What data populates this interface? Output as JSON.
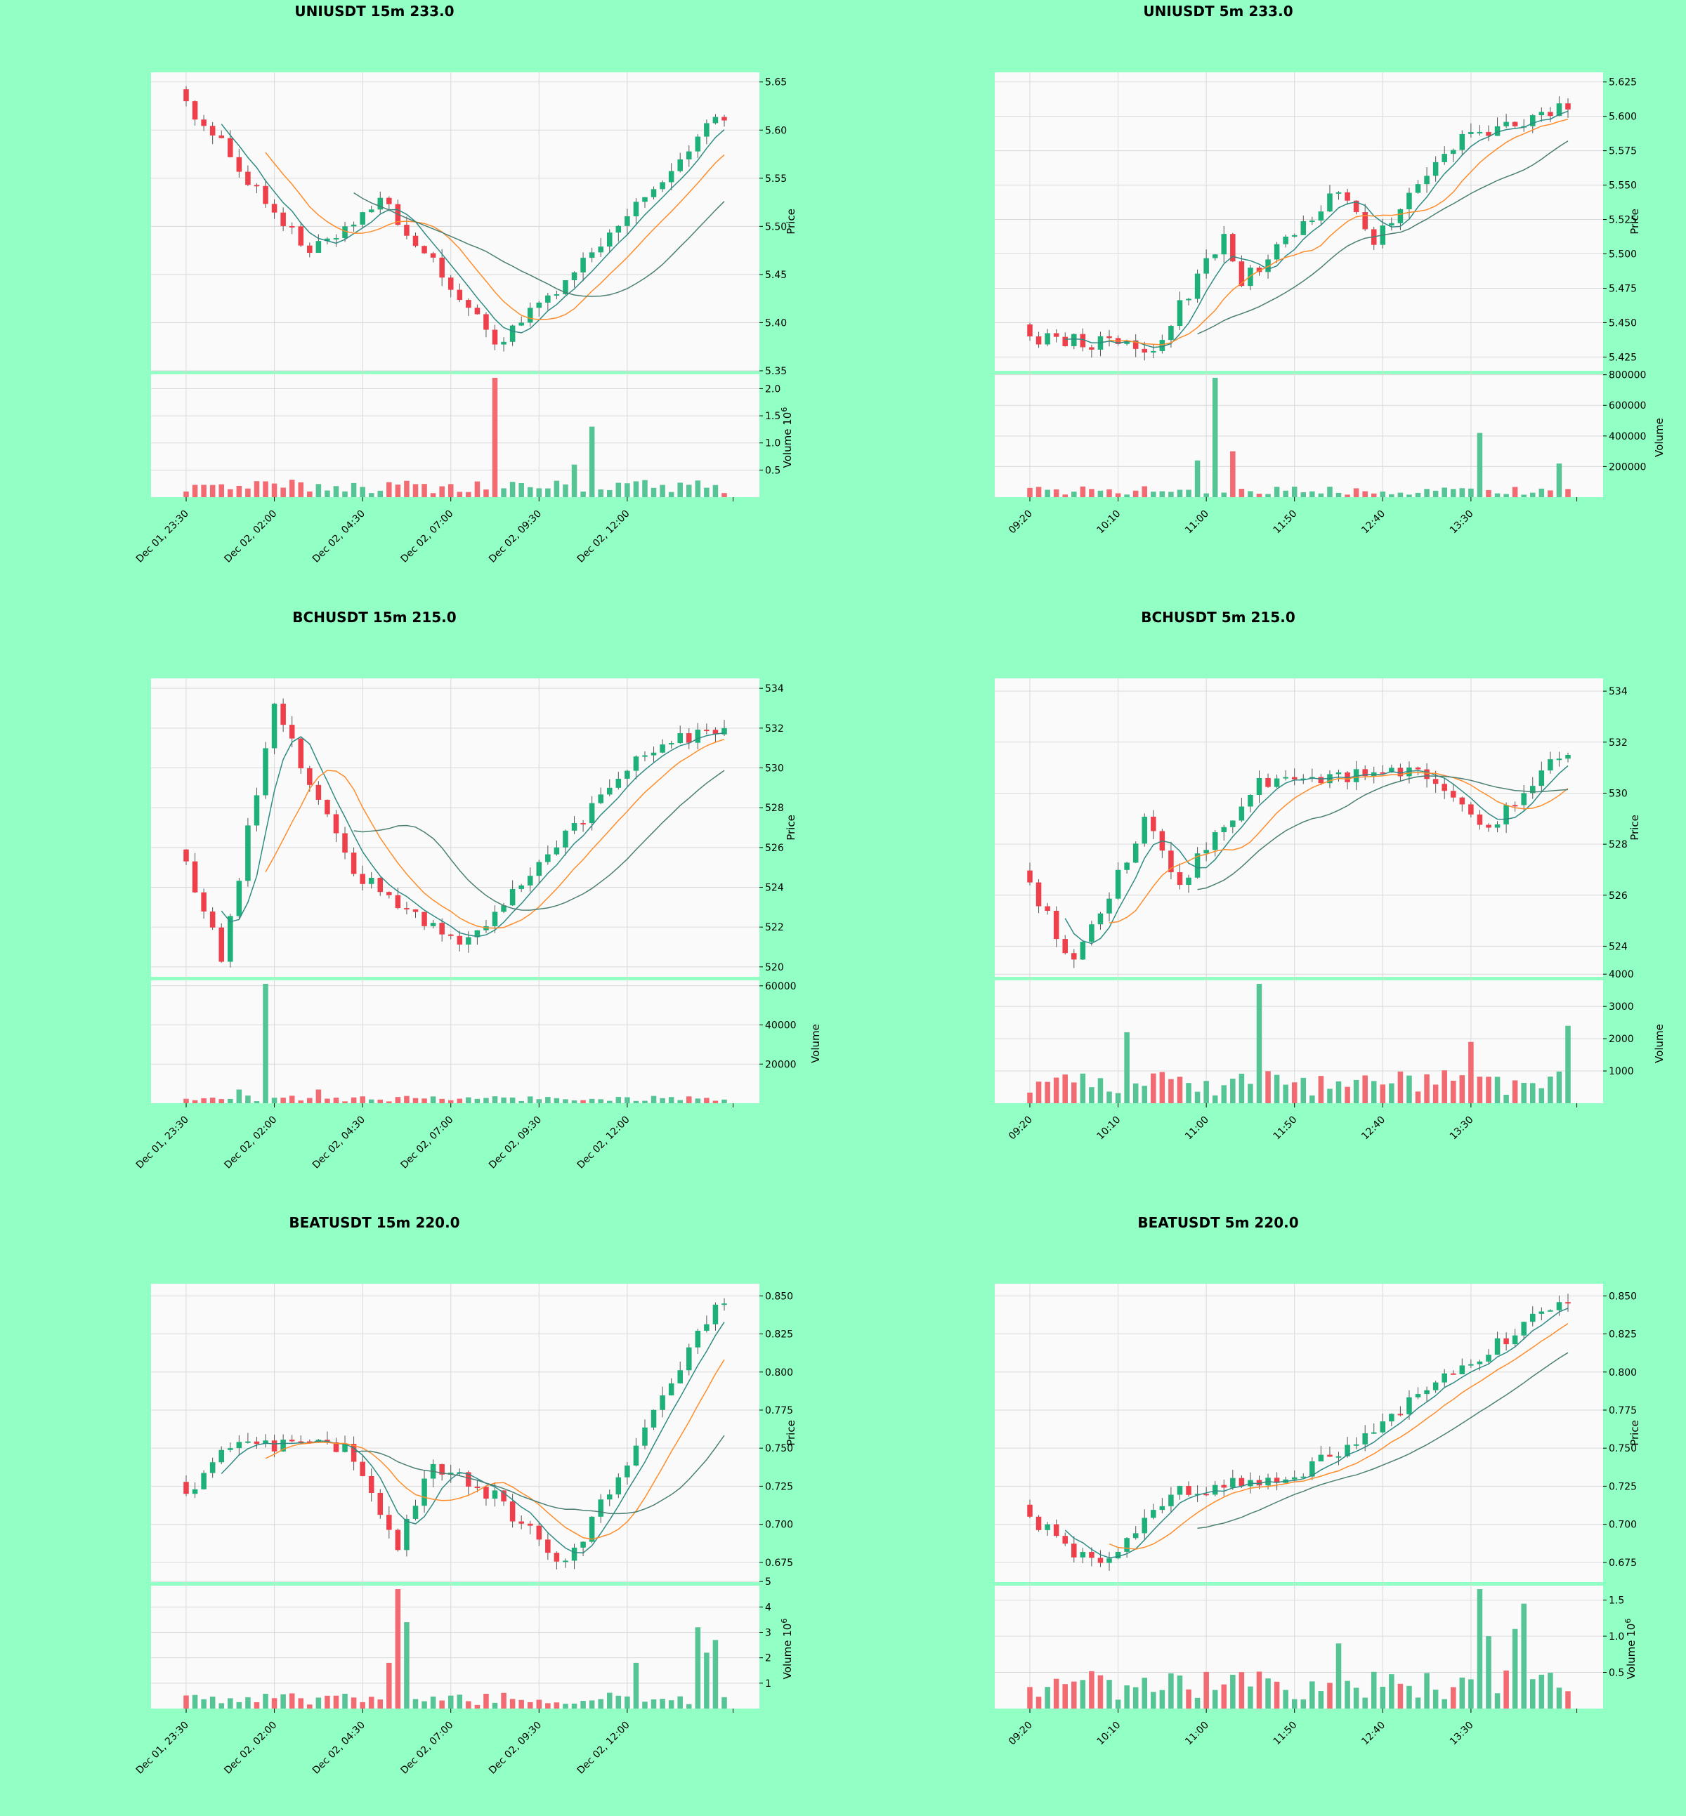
{
  "page": {
    "background": "#92ffc4"
  },
  "colors": {
    "up": "#1db078",
    "down": "#ef3f4a",
    "up_volume": "#56c596",
    "down_volume": "#f26a72",
    "ma_fast": "#2e8b84",
    "ma_mid": "#ff8c2a",
    "ma_slow": "#4a7f73",
    "panel_bg": "#fafafa",
    "grid": "#d9d9d9"
  },
  "chart_data": [
    {
      "type": "candlestick",
      "title": "UNIUSDT 15m 233.0",
      "ylabel": "Price",
      "volume_label": "Volume",
      "volume_exponent": "10",
      "volume_exponent_power": "6",
      "price_ticks": [
        "5.35",
        "5.40",
        "5.45",
        "5.50",
        "5.55",
        "5.60",
        "5.65"
      ],
      "ylim": [
        5.35,
        5.66
      ],
      "volume_ticks": [
        "0.5",
        "1.0",
        "1.5",
        "2.0"
      ],
      "volume_tick_values": [
        0.5,
        1.0,
        1.5,
        2.0
      ],
      "volume_max": 2.2,
      "x_ticks": [
        {
          "i": 0,
          "label": "Dec 01, 23:30"
        },
        {
          "i": 10,
          "label": "Dec 02, 02:00"
        },
        {
          "i": 20,
          "label": "Dec 02, 04:30"
        },
        {
          "i": 30,
          "label": "Dec 02, 07:00"
        },
        {
          "i": 40,
          "label": "Dec 02, 09:30"
        },
        {
          "i": 50,
          "label": "Dec 02, 12:00"
        }
      ],
      "start": 5.63,
      "end": 5.61,
      "low_points": [
        [
          35,
          5.38
        ],
        [
          14,
          5.47
        ],
        [
          42,
          5.43
        ]
      ],
      "high_points": [
        [
          0,
          5.63
        ],
        [
          22,
          5.53
        ],
        [
          60,
          5.61
        ]
      ],
      "spikes": [
        [
          35,
          2.2
        ],
        [
          46,
          1.3
        ],
        [
          44,
          0.6
        ]
      ],
      "volume_base": 0.18
    },
    {
      "type": "candlestick",
      "title": "UNIUSDT 5m 233.0",
      "ylabel": "Price",
      "volume_label": "Volume",
      "volume_exponent": "",
      "volume_exponent_power": "",
      "price_ticks": [
        "5.425",
        "5.450",
        "5.475",
        "5.500",
        "5.525",
        "5.550",
        "5.575",
        "5.600",
        "5.625"
      ],
      "ylim": [
        5.415,
        5.632
      ],
      "volume_ticks": [
        "200000",
        "400000",
        "600000",
        "800000"
      ],
      "volume_tick_values": [
        200000,
        400000,
        600000,
        800000
      ],
      "volume_max": 780000,
      "x_ticks": [
        {
          "i": 0,
          "label": "09:20"
        },
        {
          "i": 10,
          "label": "10:10"
        },
        {
          "i": 20,
          "label": "11:00"
        },
        {
          "i": 30,
          "label": "11:50"
        },
        {
          "i": 40,
          "label": "12:40"
        },
        {
          "i": 50,
          "label": "13:30"
        }
      ],
      "start": 5.44,
      "end": 5.605,
      "low_points": [
        [
          14,
          5.43
        ],
        [
          8,
          5.435
        ],
        [
          24,
          5.48
        ],
        [
          39,
          5.51
        ]
      ],
      "high_points": [
        [
          22,
          5.515
        ],
        [
          35,
          5.545
        ],
        [
          48,
          5.58
        ],
        [
          60,
          5.605
        ]
      ],
      "spikes": [
        [
          21,
          780000
        ],
        [
          23,
          300000
        ],
        [
          19,
          240000
        ],
        [
          51,
          420000
        ],
        [
          60,
          220000
        ]
      ],
      "volume_base": 40000
    },
    {
      "type": "candlestick",
      "title": "BCHUSDT 15m 215.0",
      "ylabel": "Price",
      "volume_label": "Volume",
      "volume_exponent": "",
      "volume_exponent_power": "",
      "price_ticks": [
        "520",
        "522",
        "524",
        "526",
        "528",
        "530",
        "532",
        "534"
      ],
      "ylim": [
        519.5,
        534.5
      ],
      "volume_ticks": [
        "20000",
        "40000",
        "60000"
      ],
      "volume_tick_values": [
        20000,
        40000,
        60000
      ],
      "volume_max": 61000,
      "x_ticks": [
        {
          "i": 0,
          "label": "Dec 01, 23:30"
        },
        {
          "i": 10,
          "label": "Dec 02, 02:00"
        },
        {
          "i": 20,
          "label": "Dec 02, 04:30"
        },
        {
          "i": 30,
          "label": "Dec 02, 07:00"
        },
        {
          "i": 40,
          "label": "Dec 02, 09:30"
        },
        {
          "i": 50,
          "label": "Dec 02, 12:00"
        }
      ],
      "start": 525.3,
      "end": 532,
      "low_points": [
        [
          4,
          520.5
        ],
        [
          32,
          521.2
        ],
        [
          26,
          522.5
        ]
      ],
      "high_points": [
        [
          10,
          533
        ],
        [
          19,
          524.8
        ],
        [
          52,
          531
        ],
        [
          60,
          532
        ]
      ],
      "spikes": [
        [
          9,
          61000
        ],
        [
          6,
          7000
        ],
        [
          15,
          7000
        ]
      ],
      "volume_base": 2200
    },
    {
      "type": "candlestick",
      "title": "BCHUSDT 5m 215.0",
      "ylabel": "Price",
      "volume_label": "Volume",
      "volume_exponent": "",
      "volume_exponent_power": "",
      "price_ticks": [
        "524",
        "526",
        "528",
        "530",
        "532",
        "534"
      ],
      "ylim": [
        522.8,
        534.5
      ],
      "volume_ticks": [
        "1000",
        "2000",
        "3000",
        "4000"
      ],
      "volume_tick_values": [
        1000,
        2000,
        3000,
        4000
      ],
      "volume_max": 3700,
      "x_ticks": [
        {
          "i": 0,
          "label": "09:20"
        },
        {
          "i": 10,
          "label": "10:10"
        },
        {
          "i": 20,
          "label": "11:00"
        },
        {
          "i": 30,
          "label": "11:50"
        },
        {
          "i": 40,
          "label": "12:40"
        },
        {
          "i": 50,
          "label": "13:30"
        }
      ],
      "start": 526.5,
      "end": 531.5,
      "low_points": [
        [
          5,
          523.2
        ],
        [
          17,
          526.5
        ],
        [
          52,
          528.5
        ]
      ],
      "high_points": [
        [
          13,
          528.8
        ],
        [
          26,
          530.5
        ],
        [
          44,
          530.8
        ],
        [
          60,
          531.5
        ]
      ],
      "spikes": [
        [
          26,
          3700
        ],
        [
          11,
          2200
        ],
        [
          61,
          2400
        ],
        [
          50,
          1900
        ]
      ],
      "volume_base": 600
    },
    {
      "type": "candlestick",
      "title": "BEATUSDT 15m 220.0",
      "ylabel": "Price",
      "volume_label": "Volume",
      "volume_exponent": "10",
      "volume_exponent_power": "6",
      "price_ticks": [
        "0.675",
        "0.700",
        "0.725",
        "0.750",
        "0.775",
        "0.800",
        "0.825",
        "0.850"
      ],
      "ylim": [
        0.662,
        0.858
      ],
      "volume_ticks": [
        "1",
        "2",
        "3",
        "4",
        "5"
      ],
      "volume_tick_values": [
        1,
        2,
        3,
        4,
        5
      ],
      "volume_max": 4.7,
      "x_ticks": [
        {
          "i": 0,
          "label": "Dec 01, 23:30"
        },
        {
          "i": 10,
          "label": "Dec 02, 02:00"
        },
        {
          "i": 20,
          "label": "Dec 02, 04:30"
        },
        {
          "i": 30,
          "label": "Dec 02, 07:00"
        },
        {
          "i": 40,
          "label": "Dec 02, 09:30"
        },
        {
          "i": 50,
          "label": "Dec 02, 12:00"
        }
      ],
      "start": 0.72,
      "end": 0.845,
      "low_points": [
        [
          24,
          0.685
        ],
        [
          43,
          0.672
        ],
        [
          35,
          0.718
        ]
      ],
      "high_points": [
        [
          4,
          0.75
        ],
        [
          18,
          0.752
        ],
        [
          28,
          0.74
        ],
        [
          60,
          0.845
        ]
      ],
      "spikes": [
        [
          24,
          4.7
        ],
        [
          25,
          3.4
        ],
        [
          58,
          3.2
        ],
        [
          60,
          2.7
        ],
        [
          59,
          2.2
        ],
        [
          51,
          1.8
        ],
        [
          23,
          1.8
        ]
      ],
      "volume_base": 0.35
    },
    {
      "type": "candlestick",
      "title": "BEATUSDT 5m 220.0",
      "ylabel": "Price",
      "volume_label": "Volume",
      "volume_exponent": "10",
      "volume_exponent_power": "6",
      "price_ticks": [
        "0.675",
        "0.700",
        "0.725",
        "0.750",
        "0.775",
        "0.800",
        "0.825",
        "0.850"
      ],
      "ylim": [
        0.662,
        0.858
      ],
      "volume_ticks": [
        "0.5",
        "1.0",
        "1.5"
      ],
      "volume_tick_values": [
        0.5,
        1.0,
        1.5
      ],
      "volume_max": 1.65,
      "x_ticks": [
        {
          "i": 0,
          "label": "09:20"
        },
        {
          "i": 10,
          "label": "10:10"
        },
        {
          "i": 20,
          "label": "11:00"
        },
        {
          "i": 30,
          "label": "11:50"
        },
        {
          "i": 40,
          "label": "12:40"
        },
        {
          "i": 50,
          "label": "13:30"
        }
      ],
      "start": 0.705,
      "end": 0.845,
      "low_points": [
        [
          8,
          0.67
        ]
      ],
      "high_points": [
        [
          16,
          0.722
        ],
        [
          30,
          0.73
        ],
        [
          42,
          0.775
        ],
        [
          60,
          0.845
        ]
      ],
      "spikes": [
        [
          51,
          1.65
        ],
        [
          56,
          1.45
        ],
        [
          52,
          1.0
        ],
        [
          55,
          1.1
        ],
        [
          35,
          0.9
        ]
      ],
      "volume_base": 0.3
    }
  ]
}
